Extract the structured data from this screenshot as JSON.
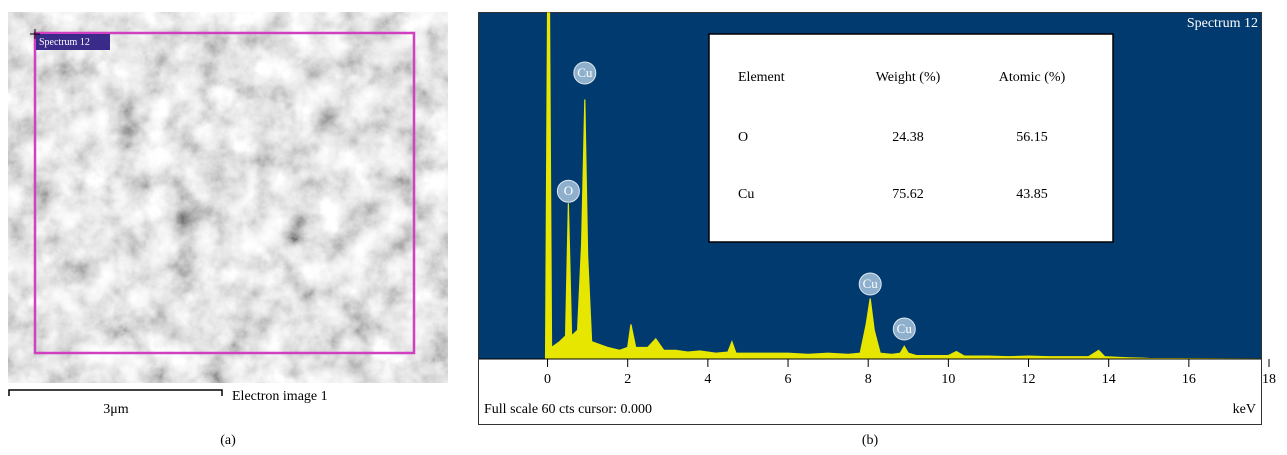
{
  "panel_a": {
    "label": "(a)",
    "spectrum_label": "Spectrum 12",
    "scale_bar": "3μm",
    "caption": "Electron image 1"
  },
  "chart_data": {
    "type": "spectrum",
    "title": "Spectrum 12",
    "panel_label": "(b)",
    "footer": "Full scale 60 cts cursor: 0.000",
    "x_label": "keV",
    "color": "#e6e600",
    "background": "#003a6e",
    "xlim": [
      -1.71,
      17.8
    ],
    "ylim": [
      0,
      60
    ],
    "xticks": [
      0,
      2,
      4,
      6,
      8,
      10,
      12,
      14,
      16,
      18
    ],
    "x": [
      -0.05,
      0,
      0.05,
      0.1,
      0.3,
      0.45,
      0.52,
      0.6,
      0.75,
      0.85,
      0.93,
      1.0,
      1.1,
      1.3,
      1.5,
      1.8,
      2.0,
      2.08,
      2.2,
      2.5,
      2.7,
      2.9,
      3.2,
      3.5,
      3.8,
      4.2,
      4.5,
      4.6,
      4.7,
      5.2,
      5.6,
      6.0,
      6.5,
      7.0,
      7.5,
      7.8,
      7.95,
      8.05,
      8.15,
      8.3,
      8.6,
      8.8,
      8.9,
      9.0,
      9.2,
      9.6,
      10.0,
      10.2,
      10.4,
      11,
      11.5,
      12,
      12.5,
      13,
      13.5,
      13.75,
      13.9,
      14.5,
      15,
      17.8
    ],
    "values": [
      0,
      60,
      60,
      2,
      3,
      4,
      27,
      4,
      5,
      20,
      45,
      18,
      3,
      2.5,
      2,
      1.5,
      2,
      6,
      2,
      2,
      3.5,
      1.5,
      1.5,
      1.2,
      1.4,
      1,
      1.2,
      3,
      1,
      1,
      1,
      1,
      0.8,
      1,
      0.8,
      1,
      6,
      10.5,
      5,
      1,
      0.8,
      1,
      2.2,
      1,
      0.6,
      0.6,
      0.6,
      1.3,
      0.5,
      0.5,
      0.4,
      0.5,
      0.4,
      0.4,
      0.4,
      1.5,
      0.4,
      0.2,
      0.1,
      0
    ],
    "peaks": [
      {
        "label": "O",
        "x": 0.52,
        "y": 29.1
      },
      {
        "label": "Cu",
        "x": 0.93,
        "y": 49.6
      },
      {
        "label": "Cu",
        "x": 8.05,
        "y": 13
      },
      {
        "label": "Cu",
        "x": 8.9,
        "y": 5.2
      }
    ],
    "table": {
      "header": [
        "Element",
        "Weight (%)",
        "Atomic (%)"
      ],
      "rows": [
        [
          "O",
          "24.38",
          "56.15"
        ],
        [
          "Cu",
          "75.62",
          "43.85"
        ]
      ]
    }
  }
}
